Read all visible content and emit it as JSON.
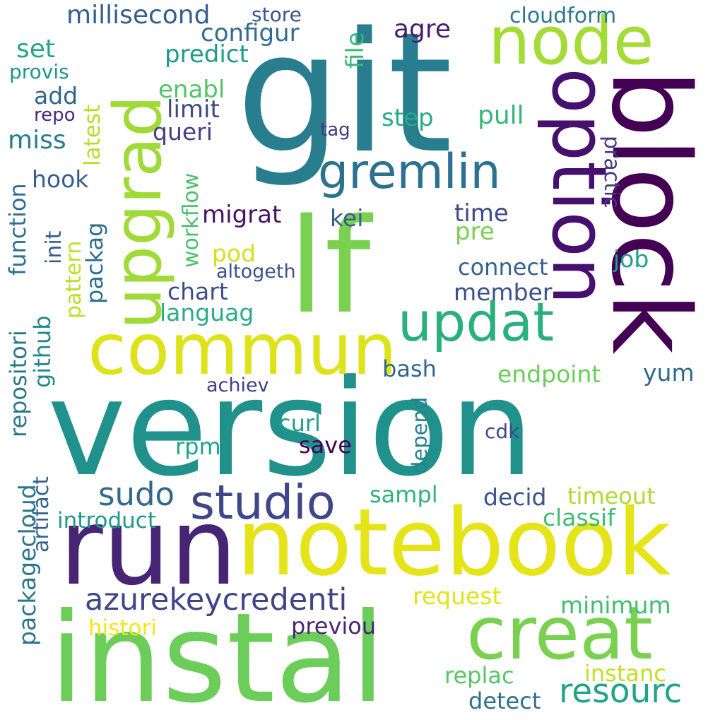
{
  "words": [
    {
      "id": "version",
      "text": "version",
      "color": "#21918c"
    },
    {
      "id": "instal",
      "text": "instal",
      "color": "#6ccd5a"
    },
    {
      "id": "run",
      "text": "run",
      "color": "#482475"
    },
    {
      "id": "notebook",
      "text": "notebook",
      "color": "#e5e419"
    },
    {
      "id": "git",
      "text": "git",
      "color": "#287d8e"
    },
    {
      "id": "lf",
      "text": "lf",
      "color": "#7ad151"
    },
    {
      "id": "block",
      "text": "block",
      "color": "#440154"
    },
    {
      "id": "option",
      "text": "option",
      "color": "#46106f"
    },
    {
      "id": "upgrad",
      "text": "upgrad",
      "color": "#a0da39"
    },
    {
      "id": "commun",
      "text": "commun",
      "color": "#dde318"
    },
    {
      "id": "node",
      "text": "node",
      "color": "#a5db36"
    },
    {
      "id": "creat",
      "text": "creat",
      "color": "#7ad151"
    },
    {
      "id": "gremlin",
      "text": "gremlin",
      "color": "#2c728e"
    },
    {
      "id": "updat",
      "text": "updat",
      "color": "#2ab07f"
    },
    {
      "id": "studio",
      "text": "studio",
      "color": "#3f4788"
    },
    {
      "id": "azurekeycredenti",
      "text": "azurekeycredenti",
      "color": "#414487"
    },
    {
      "id": "resourc",
      "text": "resourc",
      "color": "#20a486"
    },
    {
      "id": "sudo",
      "text": "sudo",
      "color": "#31688e"
    },
    {
      "id": "millisecond",
      "text": "millisecond",
      "color": "#355f8d"
    },
    {
      "id": "configur",
      "text": "configur",
      "color": "#2f6c8e"
    },
    {
      "id": "predict",
      "text": "predict",
      "color": "#1e9b8a"
    },
    {
      "id": "store",
      "text": "store",
      "color": "#39568c"
    },
    {
      "id": "file",
      "text": "file",
      "color": "#3bbb75"
    },
    {
      "id": "agre",
      "text": "agre",
      "color": "#481d6f"
    },
    {
      "id": "cloudform",
      "text": "cloudform",
      "color": "#2a788e"
    },
    {
      "id": "set",
      "text": "set",
      "color": "#22a785"
    },
    {
      "id": "provis",
      "text": "provis",
      "color": "#1f968b"
    },
    {
      "id": "latest",
      "text": "latest",
      "color": "#b8de29"
    },
    {
      "id": "enabl",
      "text": "enabl",
      "color": "#52c569"
    },
    {
      "id": "add",
      "text": "add",
      "color": "#32648e"
    },
    {
      "id": "limit",
      "text": "limit",
      "color": "#3f4889"
    },
    {
      "id": "repo",
      "text": "repo",
      "color": "#472a7a"
    },
    {
      "id": "queri",
      "text": "queri",
      "color": "#433e85"
    },
    {
      "id": "step",
      "text": "step",
      "color": "#25ac82"
    },
    {
      "id": "pull",
      "text": "pull",
      "color": "#35b779"
    },
    {
      "id": "tag",
      "text": "tag",
      "color": "#443a83"
    },
    {
      "id": "miss",
      "text": "miss",
      "color": "#287c8e"
    },
    {
      "id": "workflow",
      "text": "workflow",
      "color": "#4ac16d"
    },
    {
      "id": "practic",
      "text": "practic",
      "color": "#443983"
    },
    {
      "id": "hook",
      "text": "hook",
      "color": "#355e8d"
    },
    {
      "id": "function",
      "text": "function",
      "color": "#2c728e"
    },
    {
      "id": "migrat",
      "text": "migrat",
      "color": "#471365"
    },
    {
      "id": "kei",
      "text": "kei",
      "color": "#375b8d"
    },
    {
      "id": "time",
      "text": "time",
      "color": "#3e4a89"
    },
    {
      "id": "pre",
      "text": "pre",
      "color": "#7ad151"
    },
    {
      "id": "init",
      "text": "init",
      "color": "#38598c"
    },
    {
      "id": "packag",
      "text": "packag",
      "color": "#2e6e8e"
    },
    {
      "id": "pattern",
      "text": "pattern",
      "color": "#bddf26"
    },
    {
      "id": "pod",
      "text": "pod",
      "color": "#d2e21b"
    },
    {
      "id": "altogeth",
      "text": "altogeth",
      "color": "#3b528b"
    },
    {
      "id": "job",
      "text": "job",
      "color": "#1fa088"
    },
    {
      "id": "connect",
      "text": "connect",
      "color": "#34618d"
    },
    {
      "id": "repositori",
      "text": "repositori",
      "color": "#2a788e"
    },
    {
      "id": "chart",
      "text": "chart",
      "color": "#3d4d8a"
    },
    {
      "id": "member",
      "text": "member",
      "color": "#3b518b"
    },
    {
      "id": "languag",
      "text": "languag",
      "color": "#28ae80"
    },
    {
      "id": "github",
      "text": "github",
      "color": "#23888e"
    },
    {
      "id": "bash",
      "text": "bash",
      "color": "#31678e"
    },
    {
      "id": "endpoint",
      "text": "endpoint",
      "color": "#6ccd5a"
    },
    {
      "id": "yum",
      "text": "yum",
      "color": "#30698e"
    },
    {
      "id": "achiev",
      "text": "achiev",
      "color": "#424086"
    },
    {
      "id": "artifact",
      "text": "artifact",
      "color": "#33638d"
    },
    {
      "id": "depend",
      "text": "depend",
      "color": "#26828e"
    },
    {
      "id": "curl",
      "text": "curl",
      "color": "#1f9e89"
    },
    {
      "id": "save",
      "text": "save",
      "color": "#440154"
    },
    {
      "id": "rpm",
      "text": "rpm",
      "color": "#20a386"
    },
    {
      "id": "cdk",
      "text": "cdk",
      "color": "#3e4a89"
    },
    {
      "id": "packagecloud",
      "text": "packagecloud",
      "color": "#2a778e"
    },
    {
      "id": "sampl",
      "text": "sampl",
      "color": "#2db27d"
    },
    {
      "id": "decid",
      "text": "decid",
      "color": "#3b528b"
    },
    {
      "id": "timeout",
      "text": "timeout",
      "color": "#addc30"
    },
    {
      "id": "introduct",
      "text": "introduct",
      "color": "#1f9a8a"
    },
    {
      "id": "classif",
      "text": "classif",
      "color": "#3dbc74"
    },
    {
      "id": "request",
      "text": "request",
      "color": "#e2e418"
    },
    {
      "id": "minimum",
      "text": "minimum",
      "color": "#42be71"
    },
    {
      "id": "histori",
      "text": "histori",
      "color": "#f1e51d"
    },
    {
      "id": "previou",
      "text": "previou",
      "color": "#482677"
    },
    {
      "id": "replac",
      "text": "replac",
      "color": "#56c667"
    },
    {
      "id": "instanc",
      "text": "instanc",
      "color": "#c2df23"
    },
    {
      "id": "detect",
      "text": "detect",
      "color": "#2d708e"
    }
  ]
}
